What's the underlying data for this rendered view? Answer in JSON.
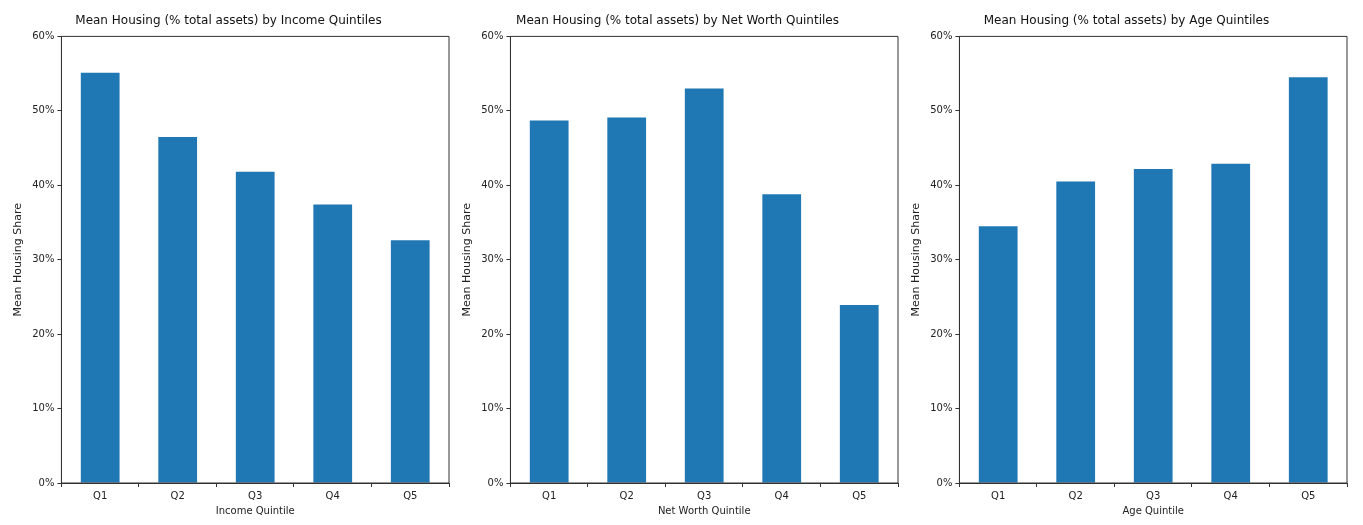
{
  "chart_data": [
    {
      "type": "bar",
      "title": "Mean Housing (% total assets) by Income Quintiles",
      "xlabel": "Income Quintile",
      "ylabel": "Mean Housing Share",
      "categories": [
        "Q1",
        "Q2",
        "Q3",
        "Q4",
        "Q5"
      ],
      "values": [
        55.1,
        46.5,
        41.8,
        37.4,
        32.6
      ],
      "color": "#1f77b4",
      "ylim": [
        0,
        60
      ],
      "yticks": [
        {
          "value": 0,
          "label": "0%"
        },
        {
          "value": 10,
          "label": "10%"
        },
        {
          "value": 20,
          "label": "20%"
        },
        {
          "value": 30,
          "label": "30%"
        },
        {
          "value": 40,
          "label": "40%"
        },
        {
          "value": 50,
          "label": "50%"
        },
        {
          "value": 60,
          "label": "60%"
        }
      ],
      "grid": false,
      "legend": false
    },
    {
      "type": "bar",
      "title": "Mean Housing (% total assets) by Net Worth Quintiles",
      "xlabel": "Net Worth Quintile",
      "ylabel": "Mean Housing Share",
      "categories": [
        "Q1",
        "Q2",
        "Q3",
        "Q4",
        "Q5"
      ],
      "values": [
        48.7,
        49.1,
        53.0,
        38.8,
        23.9
      ],
      "color": "#1f77b4",
      "ylim": [
        0,
        60
      ],
      "yticks": [
        {
          "value": 0,
          "label": "0%"
        },
        {
          "value": 10,
          "label": "10%"
        },
        {
          "value": 20,
          "label": "20%"
        },
        {
          "value": 30,
          "label": "30%"
        },
        {
          "value": 40,
          "label": "40%"
        },
        {
          "value": 50,
          "label": "50%"
        },
        {
          "value": 60,
          "label": "60%"
        }
      ],
      "grid": false,
      "legend": false
    },
    {
      "type": "bar",
      "title": "Mean Housing (% total assets) by Age Quintiles",
      "xlabel": "Age Quintile",
      "ylabel": "Mean Housing Share",
      "categories": [
        "Q1",
        "Q2",
        "Q3",
        "Q4",
        "Q5"
      ],
      "values": [
        34.5,
        40.5,
        42.2,
        42.9,
        54.5
      ],
      "color": "#1f77b4",
      "ylim": [
        0,
        60
      ],
      "yticks": [
        {
          "value": 0,
          "label": "0%"
        },
        {
          "value": 10,
          "label": "10%"
        },
        {
          "value": 20,
          "label": "20%"
        },
        {
          "value": 30,
          "label": "30%"
        },
        {
          "value": 40,
          "label": "40%"
        },
        {
          "value": 50,
          "label": "50%"
        },
        {
          "value": 60,
          "label": "60%"
        }
      ],
      "grid": false,
      "legend": false
    }
  ]
}
